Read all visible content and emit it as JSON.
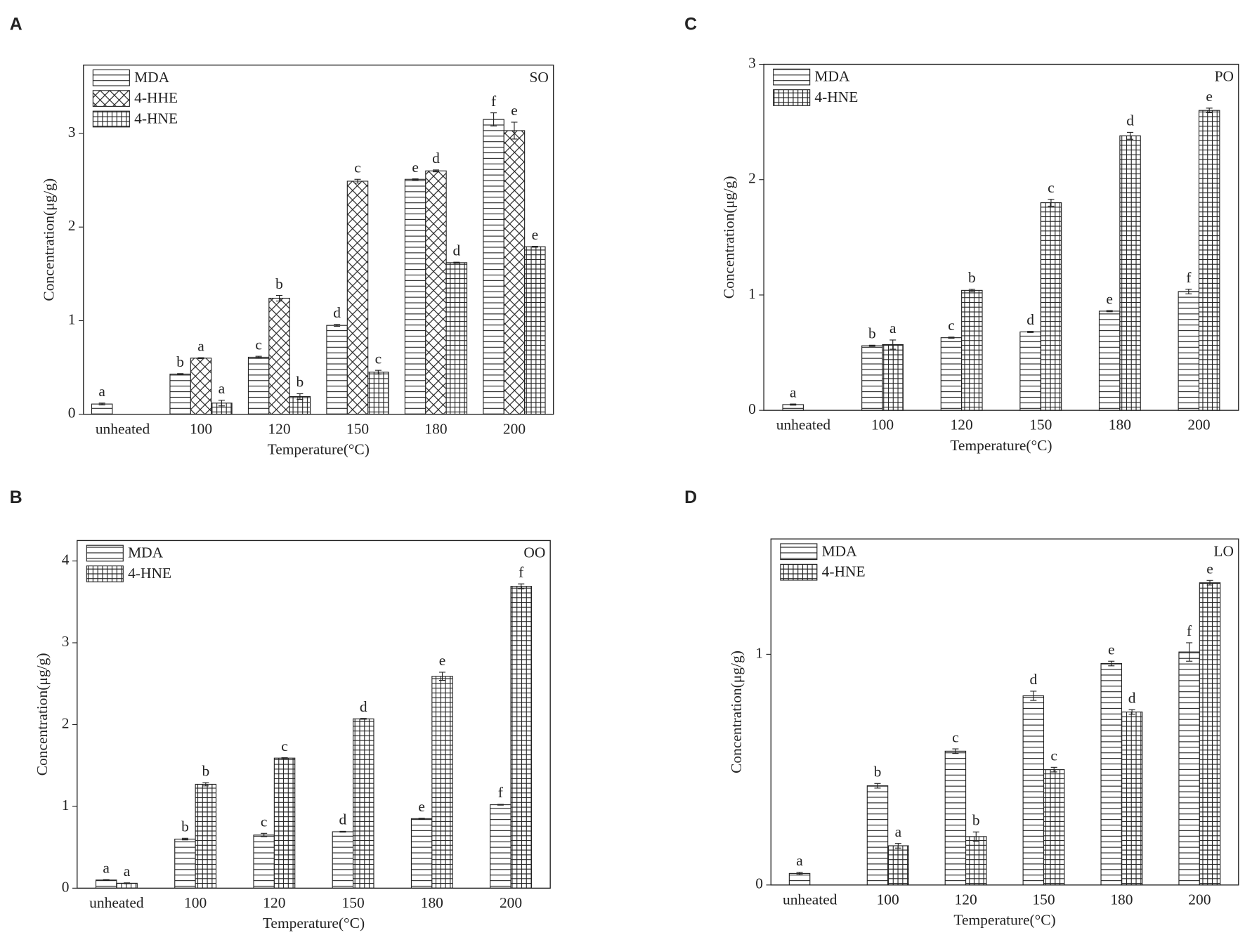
{
  "chart_data": [
    {
      "type": "bar",
      "panel": "A",
      "label": "SO",
      "xlabel": "Temperature(°C)",
      "ylabel": "Concentration(μg/g)",
      "categories": [
        "unheated",
        "100",
        "120",
        "150",
        "180",
        "200"
      ],
      "series": [
        {
          "name": "MDA",
          "color": "#222222",
          "pattern": "horizontal",
          "values": [
            0.11,
            0.43,
            0.61,
            0.95,
            2.51,
            3.15
          ],
          "errors": [
            0.01,
            0.005,
            0.01,
            0.01,
            0.005,
            0.07
          ],
          "annotations": [
            "a",
            "b",
            "c",
            "d",
            "e",
            "f"
          ]
        },
        {
          "name": "4-HHE",
          "color": "#222222",
          "pattern": "crosshatch",
          "values": [
            null,
            0.6,
            1.24,
            2.49,
            2.6,
            3.03
          ],
          "errors": [
            null,
            0.005,
            0.03,
            0.02,
            0.01,
            0.09
          ],
          "annotations": [
            null,
            "a",
            "b",
            "c",
            "d",
            "e"
          ]
        },
        {
          "name": "4-HNE",
          "color": "#222222",
          "pattern": "grid",
          "values": [
            null,
            0.12,
            0.19,
            0.45,
            1.62,
            1.79
          ],
          "errors": [
            null,
            0.03,
            0.03,
            0.02,
            0.005,
            0.005
          ],
          "annotations": [
            null,
            "a",
            "b",
            "c",
            "d",
            "e"
          ]
        }
      ],
      "ylim": [
        0,
        3.73
      ],
      "yticks": [
        0,
        1,
        2,
        3
      ],
      "legend": "upper left"
    },
    {
      "type": "bar",
      "panel": "B",
      "label": "OO",
      "xlabel": "Temperature(°C)",
      "ylabel": "Concentration(μg/g)",
      "categories": [
        "unheated",
        "100",
        "120",
        "150",
        "180",
        "200"
      ],
      "series": [
        {
          "name": "MDA",
          "color": "#222222",
          "pattern": "horizontal",
          "values": [
            0.1,
            0.6,
            0.65,
            0.69,
            0.85,
            1.02
          ],
          "errors": [
            0.005,
            0.01,
            0.02,
            0.005,
            0.005,
            0.005
          ],
          "annotations": [
            "a",
            "b",
            "c",
            "d",
            "e",
            "f"
          ]
        },
        {
          "name": "4-HNE",
          "color": "#222222",
          "pattern": "grid",
          "values": [
            0.06,
            1.27,
            1.59,
            2.07,
            2.59,
            3.69
          ],
          "errors": [
            0.005,
            0.02,
            0.005,
            0.005,
            0.05,
            0.03
          ],
          "annotations": [
            "a",
            "b",
            "c",
            "d",
            "e",
            "f"
          ]
        }
      ],
      "ylim": [
        0,
        4.25
      ],
      "yticks": [
        0,
        1,
        2,
        3,
        4
      ],
      "legend": "upper left"
    },
    {
      "type": "bar",
      "panel": "C",
      "label": "PO",
      "xlabel": "Temperature(°C)",
      "ylabel": "Concentration(μg/g)",
      "categories": [
        "unheated",
        "100",
        "120",
        "150",
        "180",
        "200"
      ],
      "series": [
        {
          "name": "MDA",
          "color": "#222222",
          "pattern": "horizontal",
          "values": [
            0.05,
            0.56,
            0.63,
            0.68,
            0.86,
            1.03
          ],
          "errors": [
            0.005,
            0.005,
            0.005,
            0.005,
            0.005,
            0.02
          ],
          "annotations": [
            "a",
            "b",
            "c",
            "d",
            "e",
            "f"
          ]
        },
        {
          "name": "4-HNE",
          "color": "#222222",
          "pattern": "grid",
          "values": [
            null,
            0.57,
            1.04,
            1.8,
            2.38,
            2.6
          ],
          "errors": [
            null,
            0.04,
            0.01,
            0.03,
            0.03,
            0.02
          ],
          "annotations": [
            null,
            "a",
            "b",
            "c",
            "d",
            "e"
          ]
        }
      ],
      "ylim": [
        0,
        3
      ],
      "yticks": [
        0,
        1,
        2,
        3
      ],
      "legend": "upper left"
    },
    {
      "type": "bar",
      "panel": "D",
      "label": "LO",
      "xlabel": "Temperature(°C)",
      "ylabel": "Concentration(μg/g)",
      "categories": [
        "unheated",
        "100",
        "120",
        "150",
        "180",
        "200"
      ],
      "series": [
        {
          "name": "MDA",
          "color": "#222222",
          "pattern": "horizontal",
          "values": [
            0.05,
            0.43,
            0.58,
            0.82,
            0.96,
            1.01
          ],
          "errors": [
            0.005,
            0.01,
            0.01,
            0.02,
            0.01,
            0.04
          ],
          "annotations": [
            "a",
            "b",
            "c",
            "d",
            "e",
            "f"
          ]
        },
        {
          "name": "4-HNE",
          "color": "#222222",
          "pattern": "grid",
          "values": [
            null,
            0.17,
            0.21,
            0.5,
            0.75,
            1.31
          ],
          "errors": [
            null,
            0.01,
            0.02,
            0.01,
            0.01,
            0.01
          ],
          "annotations": [
            null,
            "a",
            "b",
            "c",
            "d",
            "e"
          ]
        }
      ],
      "ylim": [
        0,
        1.5
      ],
      "yticks": [
        0,
        1
      ],
      "legend": "upper left"
    }
  ]
}
